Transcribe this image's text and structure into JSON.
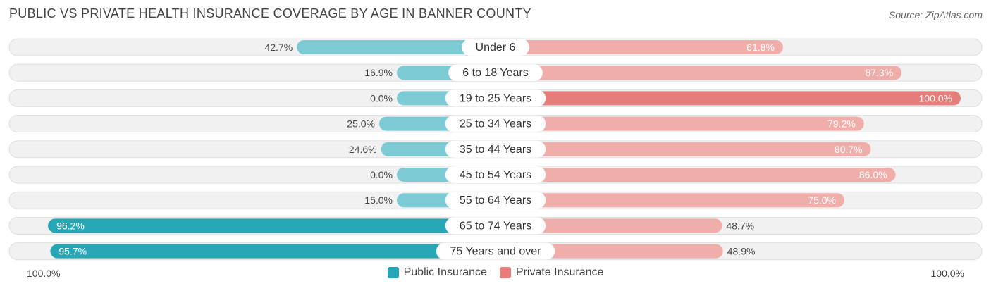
{
  "header": {
    "title": "PUBLIC VS PRIVATE HEALTH INSURANCE COVERAGE BY AGE IN BANNER COUNTY",
    "source": "Source: ZipAtlas.com"
  },
  "footer": {
    "left_label": "100.0%",
    "right_label": "100.0%"
  },
  "colors": {
    "public": "#27a6b6",
    "public_light": "#7ccad3",
    "private": "#e57e7a",
    "private_light": "#f0aeab",
    "row_bg": "#f1f1f1",
    "row_border": "#dedede"
  },
  "chart_data": {
    "type": "bar",
    "orientation": "horizontal-diverging",
    "title": "PUBLIC VS PRIVATE HEALTH INSURANCE COVERAGE BY AGE IN BANNER COUNTY",
    "categories": [
      "Under 6",
      "6 to 18 Years",
      "19 to 25 Years",
      "25 to 34 Years",
      "35 to 44 Years",
      "45 to 54 Years",
      "55 to 64 Years",
      "65 to 74 Years",
      "75 Years and over"
    ],
    "series": [
      {
        "name": "Public Insurance",
        "values": [
          42.7,
          16.9,
          0.0,
          25.0,
          24.6,
          0.0,
          15.0,
          96.2,
          95.7
        ]
      },
      {
        "name": "Private Insurance",
        "values": [
          61.8,
          87.3,
          100.0,
          79.2,
          80.7,
          86.0,
          75.0,
          48.7,
          48.9
        ]
      }
    ],
    "value_labels": {
      "public": [
        "42.7%",
        "16.9%",
        "0.0%",
        "25.0%",
        "24.6%",
        "0.0%",
        "15.0%",
        "96.2%",
        "95.7%"
      ],
      "private": [
        "61.8%",
        "87.3%",
        "100.0%",
        "79.2%",
        "80.7%",
        "86.0%",
        "75.0%",
        "48.7%",
        "48.9%"
      ]
    },
    "xlim": [
      0,
      100
    ],
    "legend": [
      "Public Insurance",
      "Private Insurance"
    ],
    "legend_position": "bottom-center"
  }
}
